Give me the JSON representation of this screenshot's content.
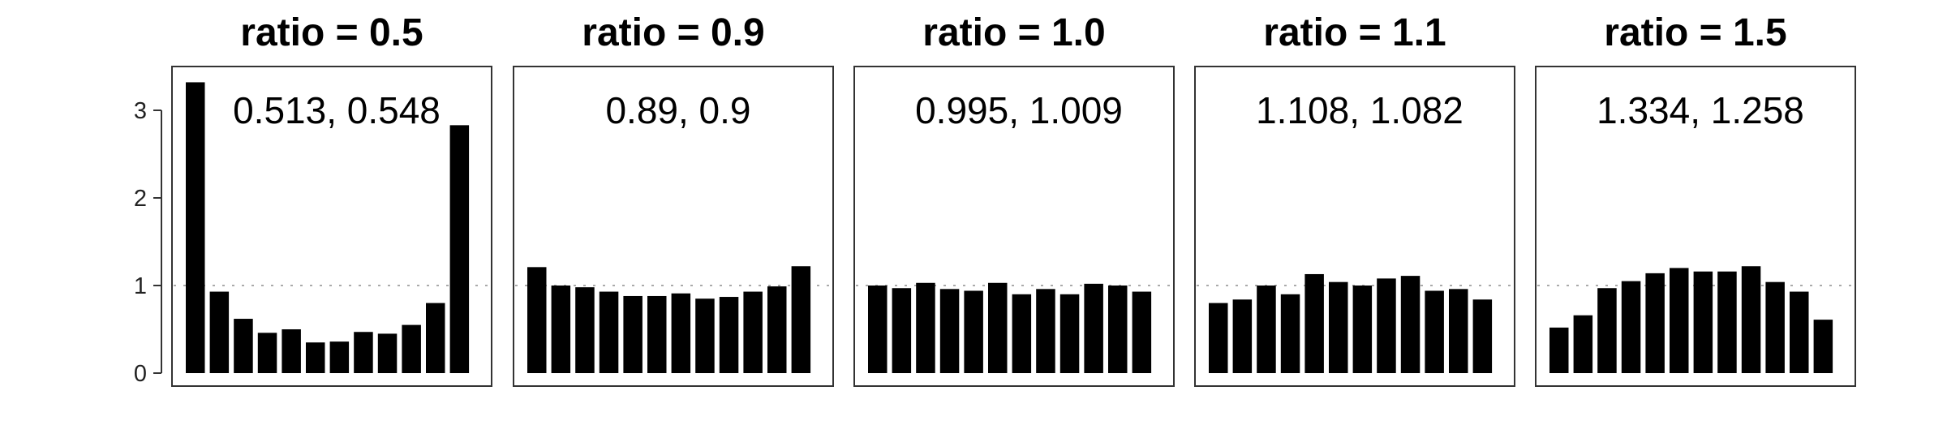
{
  "chart_data": {
    "type": "bar",
    "facet_by": "ratio",
    "reference_line": 1,
    "ylim": [
      0,
      3.5
    ],
    "y_ticks": [
      "0",
      "1",
      "2",
      "3"
    ],
    "y_tick_values": [
      0,
      1,
      2,
      3
    ],
    "grid": false,
    "colors": {
      "bar": "#000000",
      "frame": "#333333",
      "refline": "#aaaaaa"
    },
    "panels": [
      {
        "title": "ratio = 0.5",
        "annotation": "0.513, 0.548",
        "values": [
          3.32,
          0.93,
          0.62,
          0.46,
          0.5,
          0.35,
          0.36,
          0.47,
          0.45,
          0.55,
          0.8,
          2.83
        ]
      },
      {
        "title": "ratio = 0.9",
        "annotation": "0.89, 0.9",
        "values": [
          1.21,
          1.0,
          0.98,
          0.93,
          0.88,
          0.88,
          0.91,
          0.85,
          0.87,
          0.93,
          0.99,
          1.22
        ]
      },
      {
        "title": "ratio = 1.0",
        "annotation": "0.995, 1.009",
        "values": [
          1.0,
          0.97,
          1.03,
          0.96,
          0.94,
          1.03,
          0.9,
          0.96,
          0.9,
          1.02,
          1.0,
          0.93
        ]
      },
      {
        "title": "ratio = 1.1",
        "annotation": "1.108, 1.082",
        "values": [
          0.8,
          0.84,
          1.0,
          0.9,
          1.13,
          1.04,
          1.0,
          1.08,
          1.11,
          0.94,
          0.96,
          0.84
        ]
      },
      {
        "title": "ratio = 1.5",
        "annotation": "1.334, 1.258",
        "values": [
          0.52,
          0.66,
          0.97,
          1.05,
          1.14,
          1.2,
          1.16,
          1.16,
          1.22,
          1.04,
          0.93,
          0.61
        ]
      }
    ]
  }
}
